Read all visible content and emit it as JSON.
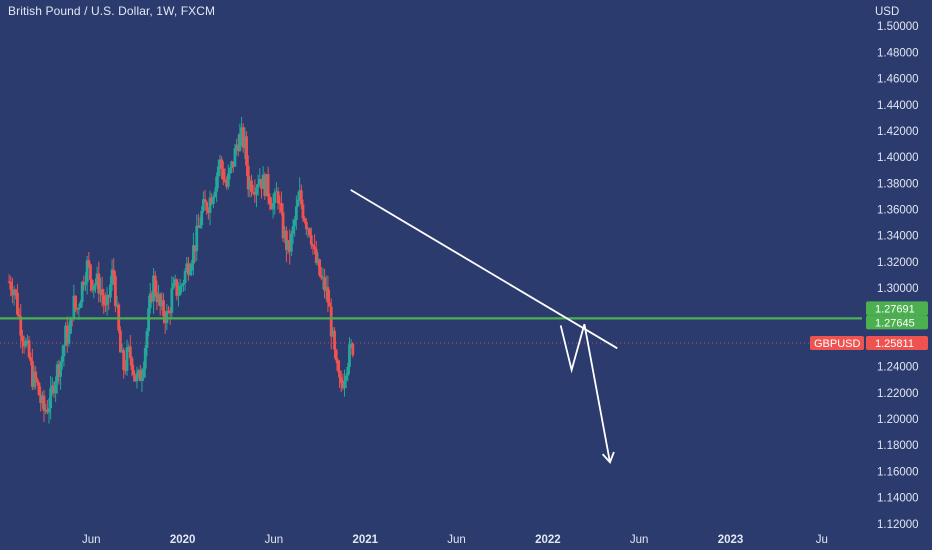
{
  "title": "British Pound / U.S. Dollar, 1W, FXCM",
  "currency_label": "USD",
  "colors": {
    "background": "#2b3b6e",
    "bull": "#26a69a",
    "bear": "#ef5350",
    "support": "#4caf50",
    "annotation": "#ffffff",
    "price_tag": "#ef5350",
    "level_tag": "#4caf50"
  },
  "chart_data": {
    "type": "candlestick",
    "ylim": [
      1.1,
      1.52
    ],
    "y_ticks": [
      "1.50000",
      "1.48000",
      "1.46000",
      "1.44000",
      "1.42000",
      "1.40000",
      "1.38000",
      "1.36000",
      "1.34000",
      "1.32000",
      "1.30000",
      "1.28000",
      "1.26000",
      "1.24000",
      "1.22000",
      "1.20000",
      "1.18000",
      "1.16000",
      "1.14000",
      "1.12000"
    ],
    "x_ticks": [
      {
        "label": "Jun",
        "bold": false
      },
      {
        "label": "2020",
        "bold": true
      },
      {
        "label": "Jun",
        "bold": false
      },
      {
        "label": "2021",
        "bold": true
      },
      {
        "label": "Jun",
        "bold": false
      },
      {
        "label": "2022",
        "bold": true
      },
      {
        "label": "Jun",
        "bold": false
      },
      {
        "label": "2023",
        "bold": true
      },
      {
        "label": "Ju",
        "bold": false
      }
    ],
    "x_tick_pos": [
      0.5,
      1.0,
      1.5,
      2.0,
      2.5,
      3.0,
      3.5,
      4.0,
      4.5
    ],
    "x_range": [
      0.0,
      4.72
    ],
    "support_level": 1.2769,
    "last_price": 1.25811,
    "price_label": "GBPUSD",
    "level_labels": [
      "1.27691",
      "1.27645"
    ],
    "price_tag_value": "1.25811",
    "close_path": [
      [
        0.05,
        1.305
      ],
      [
        0.08,
        1.3
      ],
      [
        0.1,
        1.28
      ],
      [
        0.13,
        1.262
      ],
      [
        0.16,
        1.246
      ],
      [
        0.18,
        1.23
      ],
      [
        0.2,
        1.228
      ],
      [
        0.22,
        1.215
      ],
      [
        0.24,
        1.206
      ],
      [
        0.26,
        1.21
      ],
      [
        0.28,
        1.216
      ],
      [
        0.3,
        1.232
      ],
      [
        0.32,
        1.24
      ],
      [
        0.34,
        1.248
      ],
      [
        0.36,
        1.265
      ],
      [
        0.38,
        1.262
      ],
      [
        0.4,
        1.29
      ],
      [
        0.42,
        1.282
      ],
      [
        0.44,
        1.295
      ],
      [
        0.46,
        1.31
      ],
      [
        0.48,
        1.318
      ],
      [
        0.5,
        1.306
      ],
      [
        0.52,
        1.305
      ],
      [
        0.54,
        1.303
      ],
      [
        0.56,
        1.295
      ],
      [
        0.58,
        1.28
      ],
      [
        0.6,
        1.298
      ],
      [
        0.62,
        1.315
      ],
      [
        0.64,
        1.28
      ],
      [
        0.66,
        1.249
      ],
      [
        0.68,
        1.238
      ],
      [
        0.7,
        1.25
      ],
      [
        0.72,
        1.247
      ],
      [
        0.74,
        1.232
      ],
      [
        0.76,
        1.23
      ],
      [
        0.78,
        1.24
      ],
      [
        0.8,
        1.262
      ],
      [
        0.82,
        1.285
      ],
      [
        0.84,
        1.306
      ],
      [
        0.86,
        1.295
      ],
      [
        0.88,
        1.283
      ],
      [
        0.9,
        1.281
      ],
      [
        0.92,
        1.277
      ],
      [
        0.94,
        1.295
      ],
      [
        0.96,
        1.3
      ],
      [
        0.98,
        1.297
      ],
      [
        1.0,
        1.305
      ],
      [
        1.02,
        1.315
      ],
      [
        1.04,
        1.322
      ],
      [
        1.06,
        1.33
      ],
      [
        1.08,
        1.34
      ],
      [
        1.1,
        1.355
      ],
      [
        1.12,
        1.362
      ],
      [
        1.14,
        1.365
      ],
      [
        1.16,
        1.372
      ],
      [
        1.18,
        1.382
      ],
      [
        1.2,
        1.397
      ],
      [
        1.22,
        1.389
      ],
      [
        1.24,
        1.377
      ],
      [
        1.26,
        1.388
      ],
      [
        1.28,
        1.398
      ],
      [
        1.3,
        1.413
      ],
      [
        1.32,
        1.415
      ],
      [
        1.34,
        1.41
      ],
      [
        1.36,
        1.38
      ],
      [
        1.38,
        1.381
      ],
      [
        1.4,
        1.38
      ],
      [
        1.42,
        1.386
      ],
      [
        1.44,
        1.38
      ],
      [
        1.46,
        1.378
      ],
      [
        1.48,
        1.37
      ],
      [
        1.5,
        1.362
      ],
      [
        1.52,
        1.375
      ],
      [
        1.54,
        1.35
      ],
      [
        1.56,
        1.338
      ],
      [
        1.58,
        1.327
      ],
      [
        1.6,
        1.34
      ],
      [
        1.62,
        1.356
      ],
      [
        1.64,
        1.37
      ],
      [
        1.66,
        1.359
      ],
      [
        1.68,
        1.35
      ],
      [
        1.7,
        1.345
      ],
      [
        1.72,
        1.325
      ],
      [
        1.74,
        1.315
      ],
      [
        1.76,
        1.305
      ],
      [
        1.78,
        1.3
      ],
      [
        1.8,
        1.288
      ],
      [
        1.82,
        1.262
      ],
      [
        1.84,
        1.238
      ],
      [
        1.86,
        1.225
      ],
      [
        1.88,
        1.232
      ],
      [
        1.9,
        1.245
      ],
      [
        1.92,
        1.252
      ],
      [
        1.94,
        1.258
      ]
    ],
    "trendline": {
      "from": [
        1.92,
        1.375
      ],
      "to": [
        3.38,
        1.254
      ]
    },
    "projection": [
      [
        3.07,
        1.2715
      ],
      [
        3.13,
        1.2375
      ],
      [
        3.2,
        1.2725
      ],
      [
        3.34,
        1.167
      ]
    ]
  }
}
